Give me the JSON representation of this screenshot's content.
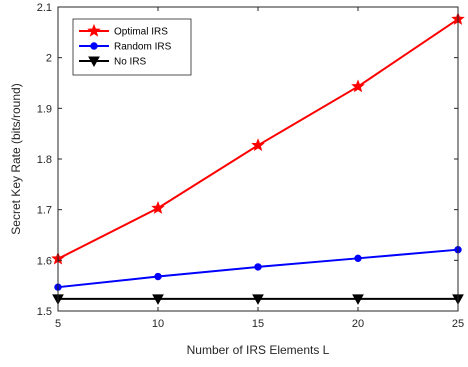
{
  "chart_data": {
    "type": "line",
    "xlabel": "Number of IRS Elements L",
    "ylabel": "Secret Key Rate (bits/round)",
    "xlim": [
      5,
      25
    ],
    "ylim": [
      1.5,
      2.1
    ],
    "xticks": [
      5,
      10,
      15,
      20,
      25
    ],
    "yticks": [
      1.5,
      1.6,
      1.7,
      1.8,
      1.9,
      2,
      2.1
    ],
    "x_tick_labels": [
      "5",
      "10",
      "15",
      "20",
      "25"
    ],
    "y_tick_labels": [
      "1.5",
      "1.6",
      "1.7",
      "1.8",
      "1.9",
      "2",
      "2.1"
    ],
    "x": [
      5,
      10,
      15,
      20,
      25
    ],
    "grid": false,
    "legend_position": "top-left",
    "series": [
      {
        "name": "Optimal IRS",
        "values": [
          1.603,
          1.703,
          1.827,
          1.943,
          2.076
        ],
        "color": "#ff0000",
        "marker": "star"
      },
      {
        "name": "Random IRS",
        "values": [
          1.547,
          1.568,
          1.587,
          1.604,
          1.621
        ],
        "color": "#0000ff",
        "marker": "circle"
      },
      {
        "name": "No IRS",
        "values": [
          1.524,
          1.524,
          1.524,
          1.524,
          1.524
        ],
        "color": "#000000",
        "marker": "triangle-down"
      }
    ]
  }
}
